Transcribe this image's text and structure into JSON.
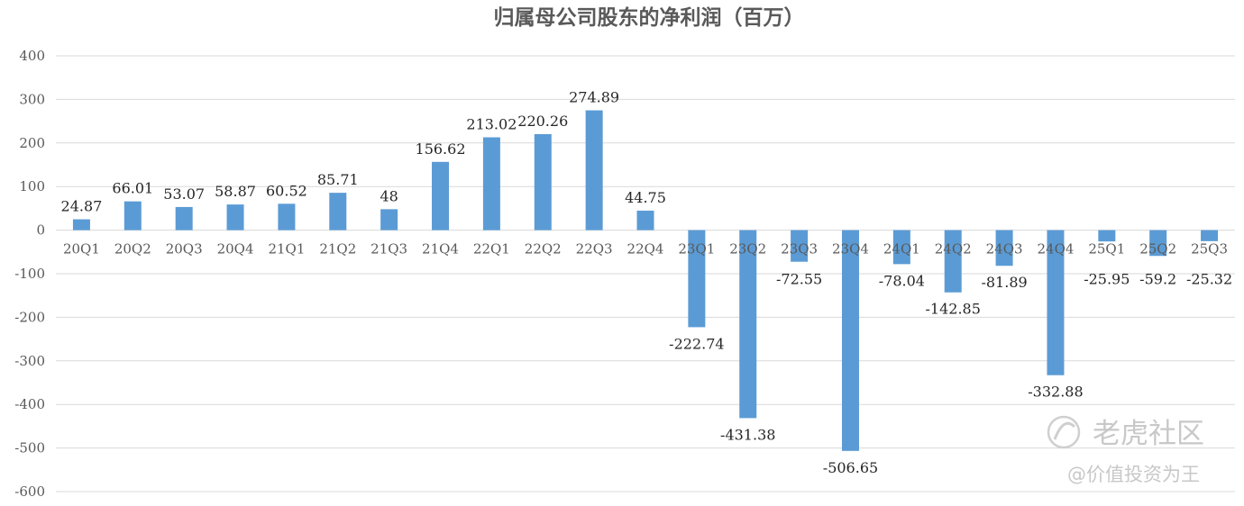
{
  "chart_data": {
    "type": "bar",
    "title": "归属母公司股东的净利润（百万）",
    "categories": [
      "20Q1",
      "20Q2",
      "20Q3",
      "20Q4",
      "21Q1",
      "21Q2",
      "21Q3",
      "21Q4",
      "22Q1",
      "22Q2",
      "22Q3",
      "22Q4",
      "23Q1",
      "23Q2",
      "23Q3",
      "23Q4",
      "24Q1",
      "24Q2",
      "24Q3",
      "24Q4",
      "25Q1",
      "25Q2",
      "25Q3"
    ],
    "values": [
      24.87,
      66.01,
      53.07,
      58.87,
      60.52,
      85.71,
      48,
      156.62,
      213.02,
      220.26,
      274.89,
      44.75,
      -222.74,
      -431.38,
      -72.55,
      -506.65,
      -78.04,
      -142.85,
      -81.89,
      -332.88,
      -25.95,
      -59.2,
      -25.32
    ],
    "value_labels": [
      "24.87",
      "66.01",
      "53.07",
      "58.87",
      "60.52",
      "85.71",
      "48",
      "156.62",
      "213.02",
      "220.26",
      "274.89",
      "44.75",
      "-222.74",
      "-431.38",
      "-72.55",
      "-506.65",
      "-78.04",
      "-142.85",
      "-81.89",
      "-332.88",
      "-25.95",
      "-59.2",
      "-25.32"
    ],
    "ylim": [
      -600,
      400
    ],
    "yticks": [
      "400",
      "300",
      "200",
      "100",
      "0",
      "-100",
      "-200",
      "-300",
      "-400",
      "-500",
      "-600"
    ],
    "ytick_values": [
      400,
      300,
      200,
      100,
      0,
      -100,
      -200,
      -300,
      -400,
      -500,
      -600
    ],
    "grid": true,
    "legend": "none",
    "bar_color": "#5b9bd5",
    "grid_color": "#d9d9d9"
  },
  "watermark": {
    "brand": "老虎社区",
    "author": "@价值投资为王"
  }
}
